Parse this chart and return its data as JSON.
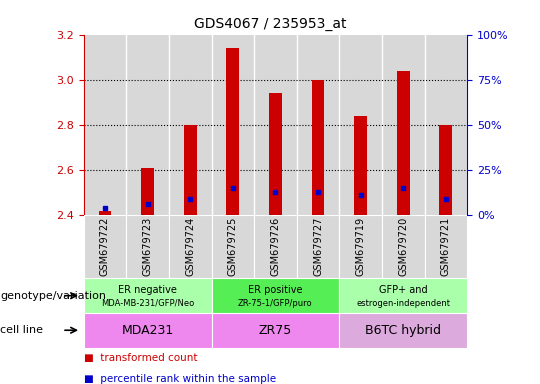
{
  "title": "GDS4067 / 235953_at",
  "samples": [
    "GSM679722",
    "GSM679723",
    "GSM679724",
    "GSM679725",
    "GSM679726",
    "GSM679727",
    "GSM679719",
    "GSM679720",
    "GSM679721"
  ],
  "transformed_count": [
    2.42,
    2.61,
    2.8,
    3.14,
    2.94,
    3.0,
    2.84,
    3.04,
    2.8
  ],
  "percentile_rank": [
    2.43,
    2.45,
    2.47,
    2.52,
    2.5,
    2.5,
    2.49,
    2.52,
    2.47
  ],
  "ylim": [
    2.4,
    3.2
  ],
  "yticks_left": [
    2.4,
    2.6,
    2.8,
    3.0,
    3.2
  ],
  "yticks_right_vals": [
    0,
    25,
    50,
    75,
    100
  ],
  "yticks_right_pos": [
    2.4,
    2.6,
    2.8,
    3.0,
    3.2
  ],
  "bar_color": "#cc0000",
  "percentile_color": "#0000cc",
  "bar_bottom": 2.4,
  "bar_width": 0.3,
  "groups": [
    {
      "label": "ER negative",
      "sublabel": "MDA-MB-231/GFP/Neo",
      "start": 0,
      "end": 3,
      "color": "#aaffaa"
    },
    {
      "label": "ER positive",
      "sublabel": "ZR-75-1/GFP/puro",
      "start": 3,
      "end": 6,
      "color": "#55ee55"
    },
    {
      "label": "GFP+ and",
      "sublabel": "estrogen-independent",
      "start": 6,
      "end": 9,
      "color": "#aaffaa"
    }
  ],
  "cell_lines": [
    {
      "label": "MDA231",
      "start": 0,
      "end": 3,
      "color": "#ee88ee"
    },
    {
      "label": "ZR75",
      "start": 3,
      "end": 6,
      "color": "#ee88ee"
    },
    {
      "label": "B6TC hybrid",
      "start": 6,
      "end": 9,
      "color": "#ddaadd"
    }
  ],
  "legend_items": [
    "transformed count",
    "percentile rank within the sample"
  ],
  "legend_colors": [
    "#cc0000",
    "#0000cc"
  ],
  "left_tick_color": "#cc0000",
  "right_tick_color": "#0000cc",
  "col_bg_color": "#d8d8d8",
  "grid_dotted_color": "black",
  "row_label_fontsize": 8,
  "sample_fontsize": 7,
  "group_label_fontsize": 7,
  "group_sublabel_fontsize": 6,
  "cell_fontsize": 9
}
